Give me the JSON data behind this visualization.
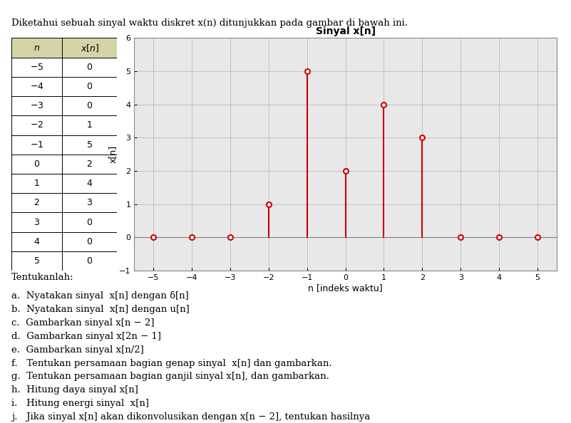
{
  "title_text": "Diketahui sebuah sinyal waktu diskret x(n) ditunjukkan pada gambar di bawah ini.",
  "table_n": [
    -5,
    -4,
    -3,
    -2,
    -1,
    0,
    1,
    2,
    3,
    4,
    5
  ],
  "table_xn": [
    0,
    0,
    0,
    1,
    5,
    2,
    4,
    3,
    0,
    0,
    0
  ],
  "plot_title": "Sinyal x[n]",
  "xlabel": "n [indeks waktu]",
  "ylabel": "x[n]",
  "xlim": [
    -5.5,
    5.5
  ],
  "ylim": [
    -1,
    6
  ],
  "xticks": [
    -5,
    -4,
    -3,
    -2,
    -1,
    0,
    1,
    2,
    3,
    4,
    5
  ],
  "yticks": [
    -1,
    0,
    1,
    2,
    3,
    4,
    5,
    6
  ],
  "stem_color": "#cc0000",
  "marker_color": "#cc0000",
  "marker_style": "o",
  "marker_size": 5,
  "marker_facecolor": "white",
  "questions_header": "Tentukanlah:",
  "questions": [
    "a.  Nyatakan sinyal  x[n] dengan δ[n]",
    "b.  Nyatakan sinyal  x[n] dengan u[n]",
    "c.  Gambarkan sinyal x[n − 2]",
    "d.  Gambarkan sinyal x[2n − 1]",
    "e.  Gambarkan sinyal x[n/2]",
    "f.   Tentukan persamaan bagian genap sinyal  x[n] dan gambarkan.",
    "g.  Tentukan persamaan bagian ganjil sinyal x[n], dan gambarkan.",
    "h.  Hitung daya sinyal x[n]",
    "i.   Hitung energi sinyal  x[n]",
    "j.   Jika sinyal x[n] akan dikonvolusikan dengan x[n − 2], tentukan hasilnya"
  ],
  "bg_color": "#ffffff",
  "table_header_bg": "#d4d4a8",
  "plot_bg": "#e8e8e8",
  "grid_color": "#b0b0b0",
  "spine_color": "#888888"
}
